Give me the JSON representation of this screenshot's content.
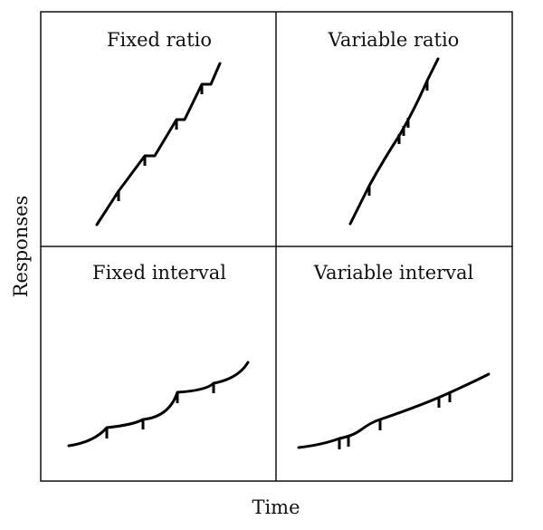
{
  "diagram": {
    "panels": [
      {
        "id": "fixed-ratio",
        "title": "Fixed ratio"
      },
      {
        "id": "variable-ratio",
        "title": "Variable ratio"
      },
      {
        "id": "fixed-interval",
        "title": "Fixed interval"
      },
      {
        "id": "variable-interval",
        "title": "Variable interval"
      }
    ],
    "xlabel": "Time",
    "ylabel": "Responses"
  }
}
